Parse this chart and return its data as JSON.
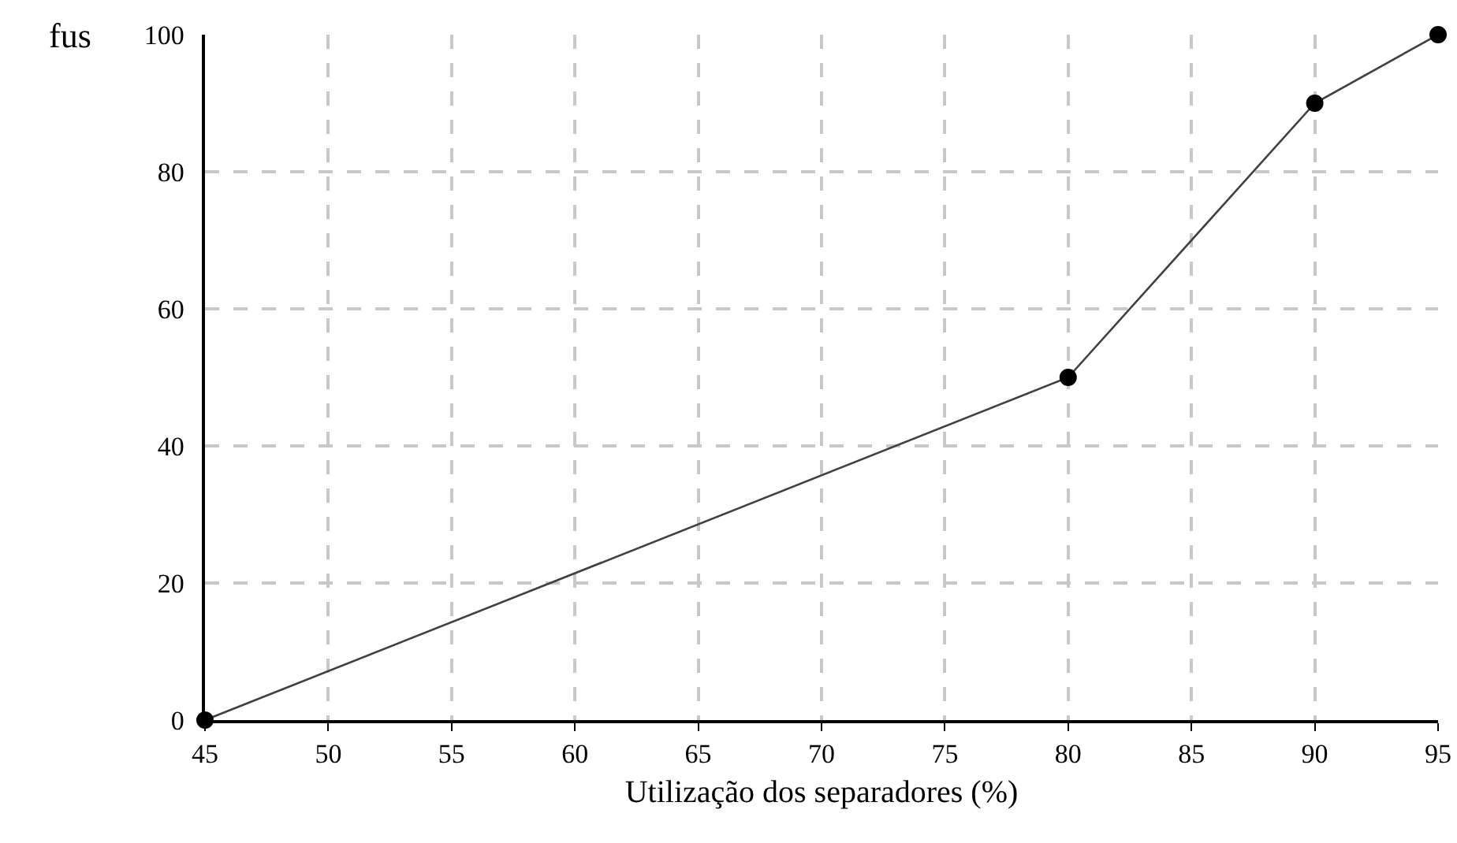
{
  "chart_data": {
    "type": "line",
    "xlabel": "Utilização dos separadores (%)",
    "ylabel": "fus",
    "x": [
      45,
      80,
      90,
      95
    ],
    "series": [
      {
        "color": "#000000",
        "values": [
          0,
          50,
          90,
          100
        ]
      }
    ],
    "xlim": [
      45,
      95
    ],
    "xticks": [
      45,
      50,
      55,
      60,
      65,
      70,
      75,
      80,
      85,
      90,
      95
    ],
    "ylim": [
      0,
      100
    ],
    "yticks": [
      0,
      20,
      40,
      60,
      80,
      100
    ],
    "grid": true,
    "marker": "circle",
    "line_style": "solid"
  }
}
